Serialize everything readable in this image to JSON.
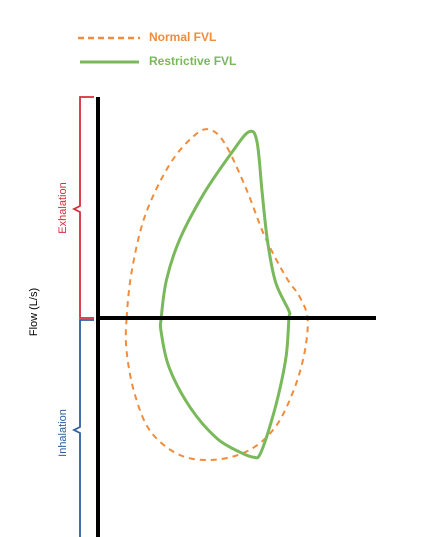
{
  "chart_data": {
    "type": "line",
    "title": "",
    "xlabel": "",
    "ylabel": "Flow (L/s)",
    "regions": {
      "upper": {
        "label": "Exhalation",
        "color": "#d62e3c"
      },
      "lower": {
        "label": "Inhalation",
        "color": "#2e5f9e"
      }
    },
    "axis_color": "#000000",
    "grid": false,
    "legend_position": "top-left",
    "xlim": [
      0,
      10
    ],
    "ylim": [
      -8,
      8
    ],
    "series": [
      {
        "name": "Normal FVL",
        "color": "#f08c3c",
        "style": "dashed",
        "points": [
          [
            1.0,
            0
          ],
          [
            1.2,
            2.0
          ],
          [
            1.7,
            4.3
          ],
          [
            2.6,
            6.4
          ],
          [
            3.5,
            7.6
          ],
          [
            4.1,
            7.9
          ],
          [
            4.7,
            7.3
          ],
          [
            5.5,
            5.4
          ],
          [
            6.2,
            3.4
          ],
          [
            7.0,
            1.7
          ],
          [
            7.5,
            0.9
          ],
          [
            7.8,
            0
          ],
          [
            7.7,
            -1.4
          ],
          [
            7.3,
            -3.0
          ],
          [
            6.6,
            -4.6
          ],
          [
            5.6,
            -5.6
          ],
          [
            4.3,
            -6.0
          ],
          [
            3.0,
            -5.8
          ],
          [
            1.9,
            -4.8
          ],
          [
            1.3,
            -3.2
          ],
          [
            1.0,
            -1.4
          ],
          [
            1.0,
            0
          ]
        ]
      },
      {
        "name": "Restrictive FVL",
        "color": "#7ab95b",
        "style": "solid",
        "points": [
          [
            2.3,
            0
          ],
          [
            2.5,
            1.6
          ],
          [
            3.0,
            3.3
          ],
          [
            3.9,
            5.2
          ],
          [
            5.0,
            7.0
          ],
          [
            5.6,
            7.8
          ],
          [
            5.9,
            7.4
          ],
          [
            6.1,
            5.2
          ],
          [
            6.3,
            3.2
          ],
          [
            6.6,
            1.5
          ],
          [
            7.1,
            0.3
          ],
          [
            7.1,
            0
          ],
          [
            7.0,
            -1.6
          ],
          [
            6.7,
            -3.3
          ],
          [
            6.3,
            -4.9
          ],
          [
            6.0,
            -5.8
          ],
          [
            5.8,
            -5.9
          ],
          [
            5.3,
            -5.7
          ],
          [
            4.4,
            -5.1
          ],
          [
            3.4,
            -3.8
          ],
          [
            2.6,
            -2.1
          ],
          [
            2.3,
            -0.6
          ],
          [
            2.3,
            0
          ]
        ]
      }
    ]
  }
}
